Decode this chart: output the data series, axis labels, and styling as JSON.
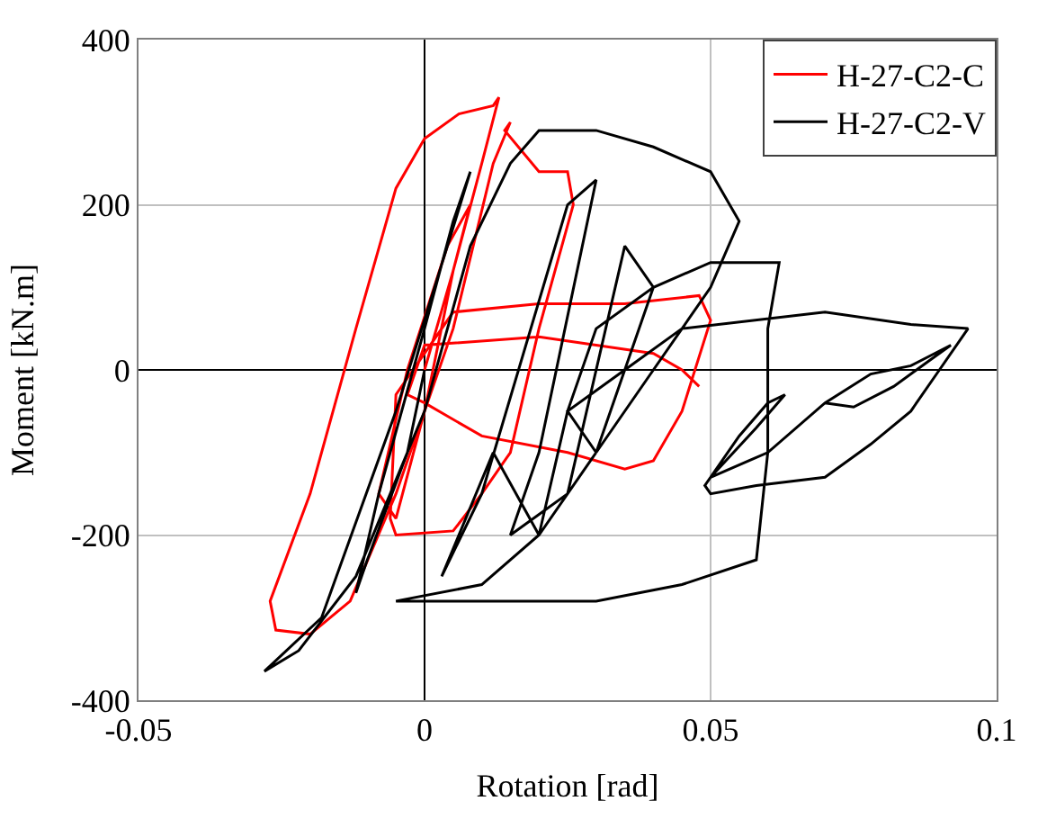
{
  "chart_data": {
    "type": "line",
    "xlabel": "Rotation [rad]",
    "ylabel": "Moment [kN.m]",
    "xlim": [
      -0.05,
      0.1
    ],
    "xticks": [
      -0.05,
      0,
      0.05,
      0.1
    ],
    "ylim": [
      -400,
      400
    ],
    "yticks": [
      -400,
      -200,
      0,
      200,
      400
    ],
    "grid": true,
    "legend": "top right",
    "marker": "none",
    "line_style": "solid",
    "series": [
      {
        "name": "H-27-C2-C",
        "color": "#ff0000",
        "x": [
          0,
          0.005,
          0.008,
          0.004,
          -0.003,
          -0.008,
          -0.005,
          0,
          0.005,
          0.01,
          0.013,
          0.012,
          0.006,
          0,
          -0.005,
          -0.012,
          -0.02,
          -0.027,
          -0.026,
          -0.02,
          -0.013,
          -0.005,
          0.005,
          0.012,
          0.015,
          0.014,
          0.02,
          0.025,
          0.026,
          0.02,
          0.015,
          0.01,
          0.005,
          -0.005,
          -0.006,
          -0.005,
          0.005,
          0.02,
          0.035,
          0.048,
          0.05,
          0.045,
          0.04,
          0.035,
          0.025,
          0.01,
          0,
          -0.003,
          0,
          0.02,
          0.03,
          0.04,
          0.045,
          0.048
        ],
        "values": [
          0,
          120,
          200,
          150,
          0,
          -150,
          -180,
          -50,
          120,
          250,
          330,
          320,
          310,
          280,
          220,
          50,
          -150,
          -280,
          -315,
          -320,
          -280,
          -150,
          50,
          250,
          300,
          290,
          240,
          240,
          200,
          50,
          -100,
          -150,
          -195,
          -200,
          -180,
          -30,
          70,
          80,
          80,
          90,
          60,
          -50,
          -110,
          -120,
          -100,
          -80,
          -40,
          -30,
          30,
          40,
          30,
          20,
          0,
          -20
        ]
      },
      {
        "name": "H-27-C2-V",
        "color": "#000000",
        "x": [
          0,
          -0.003,
          -0.01,
          -0.012,
          -0.008,
          0,
          0.005,
          0.008,
          0.004,
          -0.005,
          -0.018,
          -0.028,
          -0.022,
          -0.012,
          0,
          0.008,
          0.015,
          0.02,
          0.03,
          0.04,
          0.05,
          0.055,
          0.05,
          0.04,
          0.03,
          0.02,
          0.01,
          -0.005,
          0.01,
          0.03,
          0.045,
          0.058,
          0.06,
          0.06,
          0.062,
          0.05,
          0.04,
          0.03,
          0.025,
          0.02,
          0.012,
          0.003,
          0.01,
          0.025,
          0.03,
          0.02,
          0.015,
          0.025,
          0.035,
          0.04,
          0.03,
          0.025,
          0.035,
          0.045,
          0.07,
          0.085,
          0.095,
          0.09,
          0.085,
          0.078,
          0.07,
          0.058,
          0.05,
          0.049,
          0.055,
          0.06,
          0.063,
          0.058,
          0.05,
          0.06,
          0.07,
          0.078,
          0.085,
          0.092,
          0.088,
          0.082,
          0.075,
          0.07
        ],
        "values": [
          0,
          -100,
          -230,
          -270,
          -150,
          50,
          180,
          240,
          150,
          -50,
          -300,
          -365,
          -340,
          -250,
          -50,
          150,
          250,
          290,
          290,
          270,
          240,
          180,
          100,
          0,
          -100,
          -200,
          -260,
          -280,
          -280,
          -280,
          -260,
          -230,
          -100,
          50,
          130,
          130,
          100,
          50,
          -50,
          -200,
          -100,
          -250,
          -150,
          200,
          230,
          -100,
          -200,
          -150,
          150,
          100,
          -100,
          -50,
          0,
          50,
          70,
          55,
          50,
          0,
          -50,
          -90,
          -130,
          -140,
          -150,
          -140,
          -80,
          -40,
          -30,
          -70,
          -130,
          -100,
          -40,
          -5,
          5,
          30,
          10,
          -20,
          -45,
          -40
        ]
      }
    ]
  }
}
